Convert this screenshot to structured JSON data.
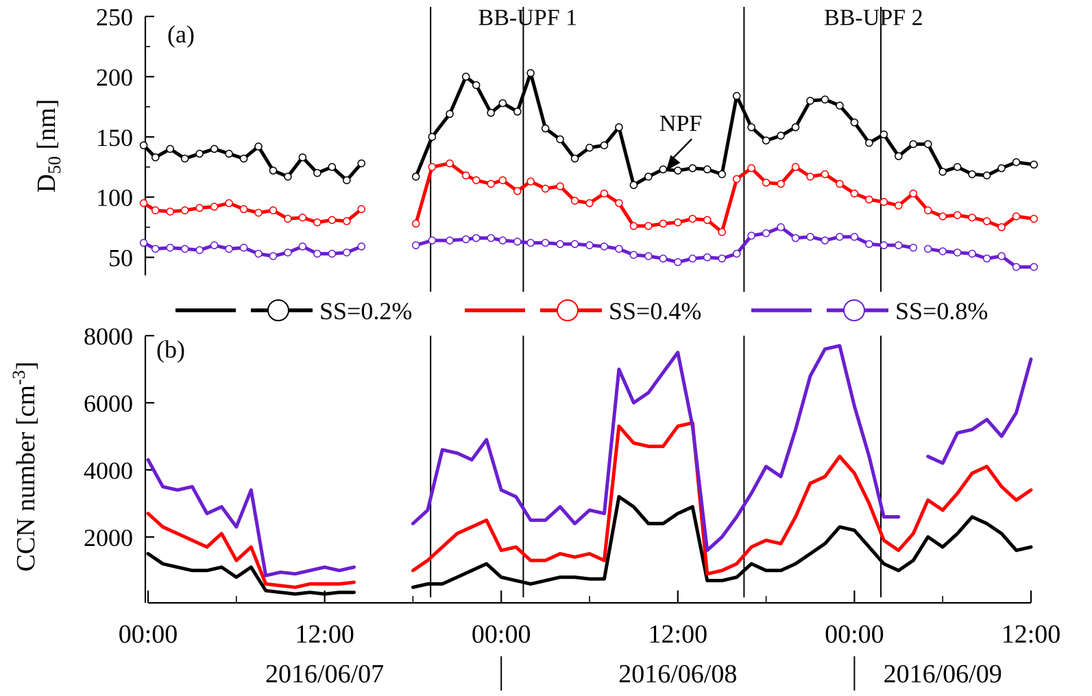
{
  "chart_data": [
    {
      "type": "line",
      "panel_label": "(a)",
      "ylabel": {
        "main": "D",
        "sub": "50",
        "unit": " [nm]"
      },
      "ylim": [
        35,
        250
      ],
      "yticks": [
        50,
        100,
        150,
        200,
        250
      ],
      "xlim_hours": [
        0,
        60
      ],
      "grid": false,
      "markers": true,
      "series": [
        {
          "name": "SS=0.2%",
          "color": "#000000",
          "segments": [
            {
              "x": [
                -0.3,
                0.5,
                1.5,
                2.5,
                3.5,
                4.5,
                5.5,
                6.5,
                7.5,
                8.5,
                9.5,
                10.5,
                11.5,
                12.5,
                13.5,
                14.5
              ],
              "y": [
                143,
                133,
                140,
                132,
                136,
                140,
                136,
                132,
                142,
                122,
                117,
                133,
                120,
                125,
                114,
                128
              ]
            },
            {
              "x": [
                18.2,
                19.3,
                20.5,
                21.6,
                22.3,
                23.3,
                24.1,
                25.1,
                26.0,
                27.0,
                28.0,
                29.0,
                30.0,
                31.0,
                32.0,
                33.0,
                34.0,
                35.0,
                36.0,
                37.0,
                38.0,
                39.0,
                40.0,
                41.0,
                42.0,
                43.0,
                44.0,
                45.0,
                46.0,
                47.0,
                48.0,
                49.0,
                50.0,
                51.0,
                52.0,
                53.0,
                54.0,
                55.0,
                56.0,
                57.0,
                58.0,
                59.0,
                60.2
              ],
              "y": [
                117,
                150,
                169,
                200,
                193,
                170,
                178,
                171,
                203,
                157,
                148,
                132,
                141,
                143,
                158,
                110,
                117,
                123,
                122,
                124,
                123,
                119,
                184,
                158,
                147,
                151,
                158,
                180,
                181,
                176,
                162,
                145,
                152,
                134,
                144,
                144,
                121,
                125,
                119,
                118,
                124,
                129,
                127
              ]
            }
          ]
        },
        {
          "name": "SS=0.4%",
          "color": "#ff0000",
          "segments": [
            {
              "x": [
                -0.3,
                0.5,
                1.5,
                2.5,
                3.5,
                4.5,
                5.5,
                6.5,
                7.5,
                8.5,
                9.5,
                10.5,
                11.5,
                12.5,
                13.5,
                14.5
              ],
              "y": [
                95,
                89,
                88,
                89,
                91,
                92,
                95,
                90,
                87,
                89,
                82,
                83,
                79,
                81,
                80,
                90
              ]
            },
            {
              "x": [
                18.2,
                19.3,
                20.5,
                21.6,
                22.3,
                23.3,
                24.1,
                25.1,
                26.0,
                27.0,
                28.0,
                29.0,
                30.0,
                31.0,
                32.0,
                33.0,
                34.0,
                35.0,
                36.0,
                37.0,
                38.0,
                39.0,
                40.0,
                41.0,
                42.0,
                43.0,
                44.0,
                45.0,
                46.0,
                47.0,
                48.0,
                49.0,
                50.0,
                51.0,
                52.0,
                53.0,
                54.0,
                55.0,
                56.0,
                57.0,
                58.0,
                59.0,
                60.2
              ],
              "y": [
                78,
                125,
                128,
                118,
                114,
                111,
                114,
                105,
                113,
                107,
                109,
                97,
                95,
                103,
                95,
                76,
                76,
                78,
                79,
                82,
                81,
                71,
                115,
                124,
                112,
                111,
                125,
                117,
                119,
                111,
                103,
                98,
                96,
                93,
                103,
                89,
                84,
                85,
                83,
                80,
                75,
                84,
                82
              ]
            }
          ]
        },
        {
          "name": "SS=0.8%",
          "color": "#6a1fd0",
          "segments": [
            {
              "x": [
                -0.3,
                0.5,
                1.5,
                2.5,
                3.5,
                4.5,
                5.5,
                6.5,
                7.5,
                8.5,
                9.5,
                10.5,
                11.5,
                12.5,
                13.5,
                14.5
              ],
              "y": [
                62,
                57,
                58,
                57,
                56,
                60,
                57,
                58,
                53,
                51,
                54,
                59,
                53,
                53,
                54,
                59
              ]
            },
            {
              "x": [
                18.2,
                19.3,
                20.5,
                21.6,
                22.3,
                23.3,
                24.1,
                25.1,
                26.0,
                27.0,
                28.0,
                29.0,
                30.0,
                31.0,
                32.0,
                33.0,
                34.0,
                35.0,
                36.0,
                37.0,
                38.0,
                39.0,
                40.0,
                41.0,
                42.0,
                43.0,
                44.0,
                45.0,
                46.0,
                47.0,
                48.0,
                49.0,
                50.0,
                51.0,
                52.0
              ],
              "y": [
                60,
                64,
                64,
                65,
                66,
                66,
                64,
                63,
                62,
                62,
                61,
                61,
                60,
                59,
                57,
                52,
                51,
                49,
                46,
                49,
                50,
                49,
                53,
                68,
                70,
                75,
                66,
                67,
                64,
                67,
                67,
                61,
                60,
                60,
                58
              ]
            },
            {
              "x": [
                53.0,
                54.0,
                55.0,
                56.0,
                57.0,
                58.0,
                59.0,
                60.2
              ],
              "y": [
                57,
                55,
                54,
                53,
                49,
                51,
                42,
                42
              ]
            }
          ]
        }
      ],
      "annotations": [
        {
          "text": "NPF",
          "x": 36.2,
          "y": 155,
          "arrow_to": [
            35.2,
            122
          ]
        },
        {
          "text": "BB-UPF 1",
          "x": 25.8,
          "y": 243
        },
        {
          "text": "BB-UPF 2",
          "x": 49.3,
          "y": 243
        }
      ]
    },
    {
      "type": "line",
      "panel_label": "(b)",
      "ylabel": {
        "main": "CCN number [cm",
        "sup": "-3",
        "end": "]"
      },
      "ylim": [
        200,
        8000
      ],
      "yticks": [
        2000,
        4000,
        6000,
        8000
      ],
      "xlim_hours": [
        0,
        60
      ],
      "grid": false,
      "markers": false,
      "series": [
        {
          "name": "SS=0.2%",
          "color": "#000000",
          "segments": [
            {
              "x": [
                0,
                1,
                2,
                3,
                4,
                5,
                6,
                7,
                8,
                9,
                10,
                11,
                12,
                13,
                14
              ],
              "y": [
                1500,
                1200,
                1100,
                1000,
                1000,
                1100,
                800,
                1100,
                400,
                350,
                300,
                350,
                300,
                350,
                350
              ]
            },
            {
              "x": [
                18,
                19,
                20,
                21,
                22,
                23,
                24,
                25,
                26,
                27,
                28,
                29,
                30,
                31,
                32,
                33,
                34,
                35,
                36,
                37,
                38,
                39,
                40,
                41,
                42,
                43,
                44,
                45,
                46,
                47,
                48,
                49,
                50,
                51,
                52,
                53,
                54,
                55,
                56,
                57,
                58,
                59,
                60
              ],
              "y": [
                500,
                600,
                600,
                800,
                1000,
                1200,
                800,
                700,
                600,
                700,
                800,
                800,
                750,
                750,
                3200,
                2900,
                2400,
                2400,
                2700,
                2900,
                700,
                700,
                800,
                1200,
                1000,
                1000,
                1200,
                1500,
                1800,
                2300,
                2200,
                1700,
                1200,
                1000,
                1300,
                2000,
                1700,
                2100,
                2600,
                2400,
                2100,
                1600,
                1700
              ]
            }
          ]
        },
        {
          "name": "SS=0.4%",
          "color": "#ff0000",
          "segments": [
            {
              "x": [
                0,
                1,
                2,
                3,
                4,
                5,
                6,
                7,
                8,
                9,
                10,
                11,
                12,
                13,
                14
              ],
              "y": [
                2700,
                2300,
                2100,
                1900,
                1700,
                2100,
                1300,
                1700,
                600,
                550,
                500,
                600,
                600,
                600,
                650
              ]
            },
            {
              "x": [
                18,
                19,
                20,
                21,
                22,
                23,
                24,
                25,
                26,
                27,
                28,
                29,
                30,
                31,
                32,
                33,
                34,
                35,
                36,
                37,
                38,
                39,
                40,
                41,
                42,
                43,
                44,
                45,
                46,
                47,
                48,
                49,
                50,
                51,
                52,
                53,
                54,
                55,
                56,
                57,
                58,
                59,
                60
              ],
              "y": [
                1000,
                1300,
                1700,
                2100,
                2300,
                2500,
                1600,
                1700,
                1300,
                1300,
                1500,
                1400,
                1500,
                1300,
                5300,
                4800,
                4700,
                4700,
                5300,
                5400,
                900,
                1000,
                1200,
                1700,
                1900,
                1800,
                2600,
                3600,
                3800,
                4400,
                3900,
                3000,
                1900,
                1600,
                2100,
                3100,
                2800,
                3300,
                3900,
                4100,
                3500,
                3100,
                3400
              ]
            }
          ]
        },
        {
          "name": "SS=0.8%",
          "color": "#6a1fd0",
          "segments": [
            {
              "x": [
                0,
                1,
                2,
                3,
                4,
                5,
                6,
                7,
                8,
                9,
                10,
                11,
                12,
                13,
                14
              ],
              "y": [
                4300,
                3500,
                3400,
                3500,
                2700,
                2900,
                2300,
                3400,
                850,
                950,
                900,
                1000,
                1100,
                1000,
                1100
              ]
            },
            {
              "x": [
                18,
                19,
                20,
                21,
                22,
                23,
                24,
                25,
                26,
                27,
                28,
                29,
                30,
                31,
                32,
                33,
                34,
                35,
                36,
                37,
                38,
                39,
                40,
                41,
                42,
                43,
                44,
                45,
                46,
                47,
                48,
                49,
                50,
                51
              ],
              "y": [
                2400,
                2800,
                4600,
                4500,
                4300,
                4900,
                3400,
                3200,
                2500,
                2500,
                2900,
                2400,
                2800,
                2700,
                7000,
                6000,
                6300,
                6900,
                7500,
                5300,
                1600,
                2000,
                2600,
                3300,
                4100,
                3800,
                5200,
                6800,
                7600,
                7700,
                5900,
                4400,
                2600,
                2600
              ]
            },
            {
              "x": [
                53,
                54,
                55,
                56,
                57,
                58,
                59,
                60
              ],
              "y": [
                4400,
                4200,
                5100,
                5200,
                5500,
                5000,
                5700,
                7300
              ]
            }
          ]
        }
      ]
    }
  ],
  "legend": {
    "placement": "between-panels",
    "entries": [
      {
        "label": "SS=0.2%",
        "color": "#000000"
      },
      {
        "label": "SS=0.4%",
        "color": "#ff0000"
      },
      {
        "label": "SS=0.8%",
        "color": "#6a1fd0"
      }
    ]
  },
  "vertical_lines_hours": [
    19.2,
    25.5,
    40.5,
    49.8
  ],
  "xaxis": {
    "ticks": [
      {
        "hour": 0,
        "label": "00:00"
      },
      {
        "hour": 12,
        "label": "12:00"
      },
      {
        "hour": 24,
        "label": "00:00"
      },
      {
        "hour": 36,
        "label": "12:00"
      },
      {
        "hour": 48,
        "label": "00:00"
      },
      {
        "hour": 60,
        "label": "12:00"
      }
    ],
    "days": [
      {
        "label": "2016/06/07",
        "center_hour": 12
      },
      {
        "label": "2016/06/08",
        "center_hour": 36
      },
      {
        "label": "2016/06/09",
        "center_hour": 54
      }
    ],
    "day_separators_hours": [
      24,
      48
    ]
  }
}
